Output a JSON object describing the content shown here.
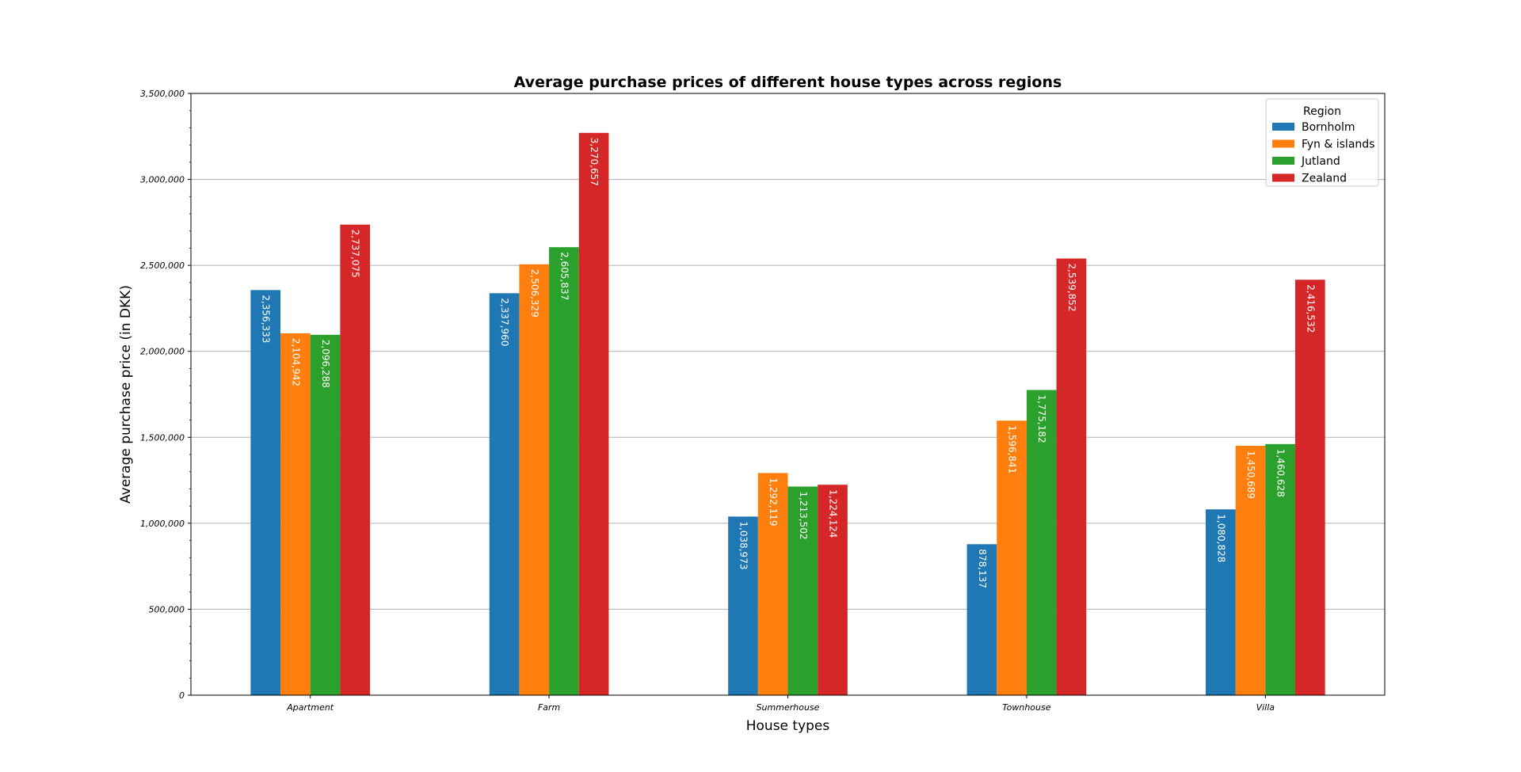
{
  "chart_data": {
    "type": "bar",
    "title": "Average purchase prices of different house types across regions",
    "xlabel": "House types",
    "ylabel": "Average purchase price (in DKK)",
    "categories": [
      "Apartment",
      "Farm",
      "Summerhouse",
      "Townhouse",
      "Villa"
    ],
    "ylim": [
      0,
      3500000
    ],
    "yticks": [
      0,
      500000,
      1000000,
      1500000,
      2000000,
      2500000,
      3000000,
      3500000
    ],
    "ytick_labels": [
      "0",
      "500,000",
      "1,000,000",
      "1,500,000",
      "2,000,000",
      "2,500,000",
      "3,000,000",
      "3,500,000"
    ],
    "grid": "horizontal",
    "legend": {
      "title": "Region",
      "placement": "top-right"
    },
    "series": [
      {
        "name": "Bornholm",
        "color": "#1f77b4",
        "values": [
          2356333,
          2337960,
          1038973,
          878137,
          1080828
        ],
        "labels": [
          "2,356,333",
          "2,337,960",
          "1,038,973",
          "878,137",
          "1,080,828"
        ]
      },
      {
        "name": "Fyn & islands",
        "color": "#ff7f0e",
        "values": [
          2104942,
          2506329,
          1292119,
          1596841,
          1450689
        ],
        "labels": [
          "2,104,942",
          "2,506,329",
          "1,292,119",
          "1,596,841",
          "1,450,689"
        ]
      },
      {
        "name": "Jutland",
        "color": "#2ca02c",
        "values": [
          2096288,
          2605837,
          1213502,
          1775182,
          1460628
        ],
        "labels": [
          "2,096,288",
          "2,605,837",
          "1,213,502",
          "1,775,182",
          "1,460,628"
        ]
      },
      {
        "name": "Zealand",
        "color": "#d62728",
        "values": [
          2737075,
          3270657,
          1224124,
          2539852,
          2416532
        ],
        "labels": [
          "2,737,075",
          "3,270,657",
          "1,224,124",
          "2,539,852",
          "2,416,532"
        ]
      }
    ]
  }
}
